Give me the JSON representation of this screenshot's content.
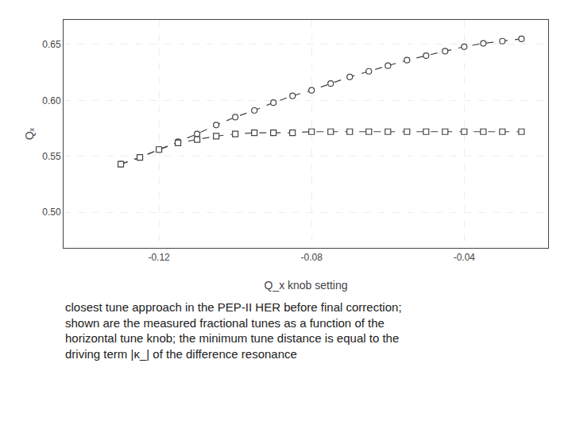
{
  "chart_data": {
    "type": "line",
    "xlabel": "Q_x knob setting",
    "ylabel": "Qₓ",
    "xlim": [
      -0.145,
      -0.018
    ],
    "ylim": [
      0.468,
      0.672
    ],
    "xticks": [
      -0.12,
      -0.08,
      -0.04
    ],
    "yticks": [
      {
        "value": 0.5,
        "label": "0.50"
      },
      0.55,
      {
        "value": 0.6,
        "label": "0.60"
      },
      0.65
    ],
    "grid": true,
    "x": [
      -0.13,
      -0.125,
      -0.12,
      -0.115,
      -0.11,
      -0.105,
      -0.1,
      -0.095,
      -0.09,
      -0.085,
      -0.08,
      -0.075,
      -0.07,
      -0.065,
      -0.06,
      -0.055,
      -0.05,
      -0.045,
      -0.04,
      -0.035,
      -0.03,
      -0.025
    ],
    "series": [
      {
        "color": "#444444",
        "marker": "circle",
        "line_style": "dash",
        "values": [
          0.543,
          0.549,
          0.556,
          0.563,
          0.57,
          0.578,
          0.585,
          0.591,
          0.598,
          0.604,
          0.609,
          0.615,
          0.621,
          0.626,
          0.631,
          0.636,
          0.64,
          0.644,
          0.648,
          0.651,
          0.653,
          0.655
        ]
      },
      {
        "color": "#444444",
        "marker": "square",
        "line_style": "dash",
        "values": [
          0.543,
          0.549,
          0.556,
          0.562,
          0.565,
          0.568,
          0.57,
          0.571,
          0.571,
          0.571,
          0.572,
          0.572,
          0.572,
          0.572,
          0.572,
          0.572,
          0.572,
          0.572,
          0.572,
          0.572,
          0.572,
          0.572
        ]
      }
    ],
    "annotations": [
      "closest tune approach in the PEP-II HER before final correction;",
      "shown are the measured fractional tunes as a function of the",
      "horizontal tune knob; the minimum tune distance is equal to the",
      "driving term |κ_| of the difference resonance"
    ]
  }
}
